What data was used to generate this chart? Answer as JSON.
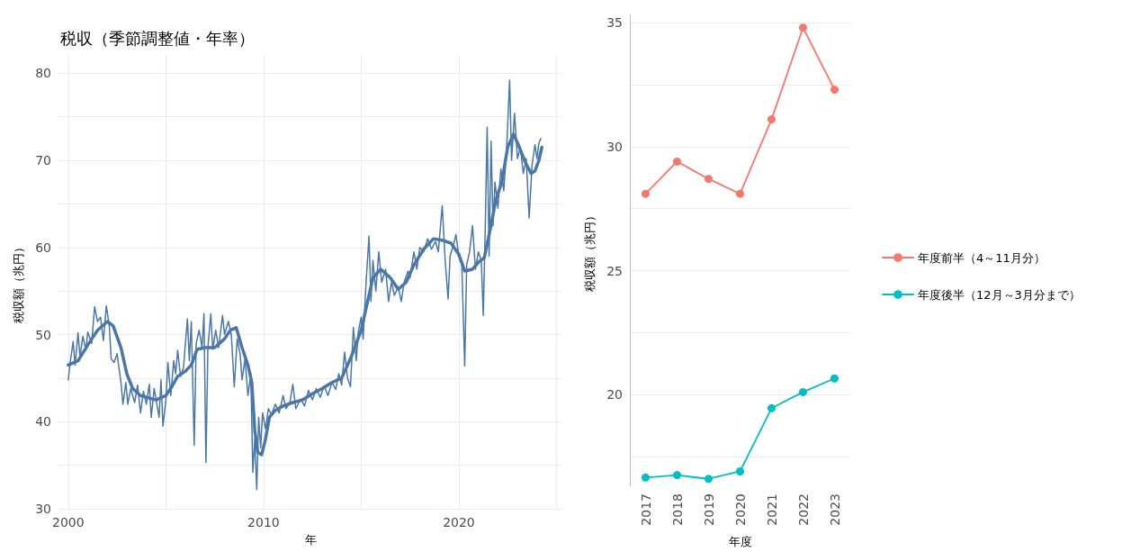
{
  "chart_data": [
    {
      "type": "line",
      "title": "税収（季節調整値・年率）",
      "xlabel": "年",
      "ylabel": "税収額（兆円）",
      "xlim": [
        1999.5,
        2025.3
      ],
      "xticks": [
        2000,
        {
          "value": 2005,
          "label": null
        },
        2010,
        {
          "value": 2015,
          "label": null
        },
        2020,
        {
          "value": 2025,
          "label": null
        }
      ],
      "ylim": [
        30,
        82
      ],
      "yticks": [
        30,
        {
          "value": 35,
          "label": null
        },
        40,
        {
          "value": 45,
          "label": null
        },
        50,
        {
          "value": 55,
          "label": null
        },
        60,
        {
          "value": 65,
          "label": null
        },
        70,
        {
          "value": 75,
          "label": null
        },
        80
      ],
      "grid": true,
      "legend": false,
      "marker": "none",
      "line_style": "solid",
      "series": [
        {
          "color": "#4a77a8",
          "x": [
            2000.0,
            2000.1,
            2000.25,
            2000.35,
            2000.5,
            2000.6,
            2000.75,
            2000.9,
            2001.0,
            2001.2,
            2001.35,
            2001.5,
            2001.65,
            2001.8,
            2001.95,
            2002.1,
            2002.2,
            2002.35,
            2002.5,
            2002.7,
            2002.8,
            2002.95,
            2003.05,
            2003.2,
            2003.4,
            2003.55,
            2003.7,
            2003.85,
            2004.0,
            2004.15,
            2004.25,
            2004.4,
            2004.5,
            2004.65,
            2004.75,
            2004.85,
            2005.0,
            2005.1,
            2005.25,
            2005.4,
            2005.5,
            2005.6,
            2005.75,
            2005.9,
            2006.1,
            2006.2,
            2006.3,
            2006.45,
            2006.55,
            2006.7,
            2006.85,
            2006.95,
            2007.05,
            2007.15,
            2007.3,
            2007.4,
            2007.55,
            2007.7,
            2007.9,
            2008.0,
            2008.2,
            2008.35,
            2008.5,
            2008.65,
            2008.8,
            2008.9,
            2009.05,
            2009.2,
            2009.35,
            2009.45,
            2009.55,
            2009.65,
            2009.75,
            2009.85,
            2009.95,
            2010.1,
            2010.25,
            2010.4,
            2010.6,
            2010.8,
            2011.0,
            2011.15,
            2011.35,
            2011.5,
            2011.65,
            2011.9,
            2012.1,
            2012.3,
            2012.5,
            2012.7,
            2012.9,
            2013.1,
            2013.3,
            2013.5,
            2013.7,
            2013.85,
            2014.0,
            2014.15,
            2014.3,
            2014.45,
            2014.6,
            2014.75,
            2014.85,
            2015.0,
            2015.1,
            2015.25,
            2015.4,
            2015.5,
            2015.6,
            2015.75,
            2015.9,
            2016.05,
            2016.25,
            2016.4,
            2016.55,
            2016.7,
            2016.9,
            2017.05,
            2017.2,
            2017.4,
            2017.5,
            2017.7,
            2017.85,
            2018.0,
            2018.2,
            2018.4,
            2018.6,
            2018.8,
            2018.95,
            2019.15,
            2019.3,
            2019.45,
            2019.55,
            2019.75,
            2019.85,
            2020.0,
            2020.15,
            2020.3,
            2020.4,
            2020.55,
            2020.7,
            2020.85,
            2021.0,
            2021.15,
            2021.25,
            2021.35,
            2021.45,
            2021.55,
            2021.65,
            2021.75,
            2021.85,
            2022.0,
            2022.15,
            2022.3,
            2022.45,
            2022.6,
            2022.7,
            2022.85,
            2023.0,
            2023.15,
            2023.3,
            2023.45,
            2023.6,
            2023.75,
            2023.9,
            2024.0,
            2024.1,
            2024.2
          ],
          "values": [
            44.8,
            46.8,
            49.2,
            46.5,
            50.2,
            47.5,
            49.8,
            48.2,
            50.3,
            49.0,
            53.2,
            51.5,
            52.0,
            49.3,
            53.3,
            51.0,
            47.2,
            46.8,
            47.8,
            44.5,
            42.0,
            44.5,
            42.0,
            43.8,
            42.2,
            44.2,
            41.0,
            43.5,
            42.0,
            44.3,
            40.5,
            43.8,
            42.5,
            40.5,
            44.8,
            39.5,
            42.5,
            46.8,
            43.0,
            47.0,
            45.5,
            48.2,
            45.2,
            46.2,
            51.8,
            47.0,
            51.5,
            37.3,
            49.0,
            50.5,
            48.5,
            52.4,
            35.3,
            48.5,
            52.4,
            48.3,
            50.5,
            48.5,
            52.2,
            50.0,
            51.5,
            50.0,
            44.0,
            49.5,
            47.8,
            44.8,
            47.2,
            43.0,
            45.5,
            34.2,
            38.0,
            32.2,
            40.5,
            37.0,
            41.0,
            39.2,
            41.5,
            40.8,
            42.0,
            41.0,
            43.0,
            41.5,
            42.2,
            44.3,
            41.5,
            42.6,
            41.8,
            43.6,
            42.5,
            43.8,
            42.8,
            44.1,
            43.0,
            44.5,
            43.7,
            45.5,
            44.2,
            48.0,
            45.0,
            44.0,
            50.8,
            47.0,
            50.3,
            52.0,
            49.5,
            56.0,
            61.3,
            53.8,
            58.5,
            55.0,
            59.5,
            56.0,
            57.5,
            53.8,
            56.0,
            54.5,
            55.5,
            53.8,
            56.0,
            57.3,
            56.5,
            59.5,
            57.5,
            60.0,
            59.5,
            61.0,
            59.8,
            60.7,
            59.5,
            64.8,
            58.5,
            54.1,
            59.0,
            60.5,
            61.5,
            59.0,
            58.3,
            46.4,
            58.0,
            59.5,
            62.5,
            57.5,
            59.5,
            58.5,
            52.2,
            62.0,
            73.8,
            59.0,
            72.2,
            62.5,
            67.5,
            64.5,
            69.0,
            66.5,
            71.5,
            79.2,
            70.0,
            75.4,
            70.2,
            71.5,
            68.5,
            70.2,
            63.4,
            69.5,
            71.8,
            70.2,
            72.0,
            72.5
          ]
        },
        {
          "color": "#4a77a8",
          "x": [
            2000.0,
            2000.5,
            2001.0,
            2001.5,
            2002.0,
            2002.3,
            2002.7,
            2003.0,
            2003.3,
            2003.7,
            2004.0,
            2004.5,
            2005.0,
            2005.3,
            2005.6,
            2006.0,
            2006.3,
            2006.6,
            2007.0,
            2007.5,
            2008.0,
            2008.3,
            2008.6,
            2008.9,
            2009.2,
            2009.4,
            2009.55,
            2009.7,
            2009.9,
            2010.1,
            2010.3,
            2010.6,
            2011.0,
            2011.5,
            2012.0,
            2012.5,
            2013.0,
            2013.5,
            2014.0,
            2014.5,
            2015.0,
            2015.3,
            2015.6,
            2016.0,
            2016.5,
            2016.9,
            2017.3,
            2017.7,
            2018.2,
            2018.7,
            2019.2,
            2019.6,
            2020.0,
            2020.3,
            2020.7,
            2021.0,
            2021.3,
            2021.6,
            2021.9,
            2022.2,
            2022.5,
            2022.8,
            2023.1,
            2023.4,
            2023.7,
            2023.9,
            2024.1,
            2024.25
          ],
          "values": [
            46.5,
            47.0,
            48.8,
            50.5,
            51.5,
            51.0,
            48.5,
            45.5,
            43.8,
            43.0,
            42.8,
            42.5,
            43.0,
            44.0,
            45.2,
            45.8,
            46.5,
            48.3,
            48.5,
            48.5,
            49.5,
            50.5,
            50.8,
            48.5,
            46.5,
            44.5,
            39.0,
            36.5,
            36.2,
            38.0,
            40.5,
            41.3,
            41.8,
            42.2,
            42.5,
            43.2,
            43.8,
            44.5,
            45.0,
            47.5,
            50.5,
            53.5,
            56.5,
            57.5,
            56.5,
            55.2,
            56.0,
            58.0,
            59.8,
            61.0,
            60.8,
            60.5,
            59.2,
            57.3,
            57.5,
            58.3,
            58.8,
            62.0,
            65.5,
            67.5,
            71.5,
            73.0,
            71.5,
            69.8,
            68.5,
            68.8,
            70.0,
            71.5
          ]
        }
      ]
    },
    {
      "type": "line",
      "xlabel": "年度",
      "ylabel": "税収額（兆円）",
      "categories": [
        "2017",
        "2018",
        "2019",
        "2020",
        "2021",
        "2022",
        "2023"
      ],
      "ylim": [
        16.3,
        35.3
      ],
      "yticks": [
        {
          "value": 17.5,
          "label": null
        },
        20,
        {
          "value": 22.5,
          "label": null
        },
        25,
        {
          "value": 27.5,
          "label": null
        },
        30,
        {
          "value": 32.5,
          "label": null
        },
        35
      ],
      "grid": "y",
      "legend": "right",
      "marker": "circle",
      "line_style": "solid",
      "series": [
        {
          "name": "年度前半（4～11月分）",
          "color": "#f8766d",
          "values": [
            28.1,
            29.4,
            28.7,
            28.1,
            31.1,
            34.8,
            32.3
          ]
        },
        {
          "name": "年度後半（12月～3月分まで）",
          "color": "#00bfc4",
          "values": [
            16.65,
            16.75,
            16.6,
            16.9,
            19.45,
            20.1,
            20.65
          ]
        }
      ]
    }
  ]
}
